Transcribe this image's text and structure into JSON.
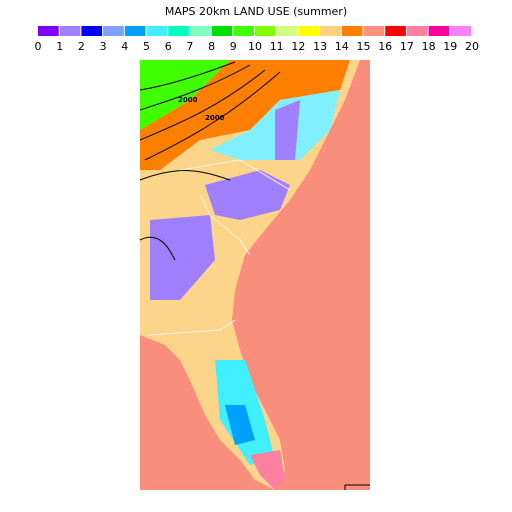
{
  "title": "MAPS 20km LAND USE (summer)",
  "legend": {
    "labels": [
      "0",
      "1",
      "2",
      "3",
      "4",
      "5",
      "6",
      "7",
      "8",
      "9",
      "10",
      "11",
      "12",
      "13",
      "14",
      "15",
      "16",
      "17",
      "18",
      "19",
      "20"
    ],
    "colors": [
      "#8000ff",
      "#a080ff",
      "#0000ff",
      "#80a0ff",
      "#00a0ff",
      "#40f0ff",
      "#00ffc0",
      "#80ffc0",
      "#00e000",
      "#40ff00",
      "#80ff00",
      "#d0ff80",
      "#ffff00",
      "#ffd080",
      "#ff8000",
      "#ff9080",
      "#ff0000",
      "#ff80a0",
      "#ff00a0",
      "#ff80ff"
    ]
  },
  "map": {
    "contour_labels": [
      "2000",
      "2000"
    ]
  }
}
